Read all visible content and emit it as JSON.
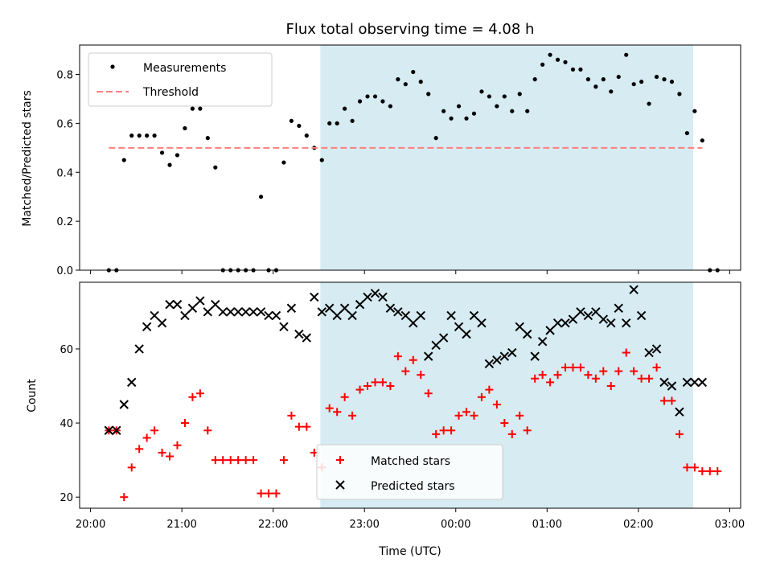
{
  "chart_data": {
    "title": "Flux total observing time = 4.08 h",
    "xlabel": "Time (UTC)",
    "x_ticks": [
      "20:00",
      "21:00",
      "22:00",
      "23:00",
      "00:00",
      "01:00",
      "02:00",
      "03:00"
    ],
    "x_range_hours": [
      -0.12,
      7.12
    ],
    "shaded_region": {
      "start": "22:31",
      "end": "02:36",
      "color": "#add8e6"
    },
    "panels": [
      {
        "type": "scatter",
        "ylabel": "Matched/Predicted stars",
        "ylim": [
          0,
          0.92
        ],
        "y_ticks": [
          "0.0",
          "0.2",
          "0.4",
          "0.6",
          "0.8"
        ],
        "y_tick_values": [
          0,
          0.2,
          0.4,
          0.6,
          0.8
        ],
        "legend_placement": "upper-left",
        "series": [
          {
            "name": "Measurements",
            "marker": "dot",
            "color": "#000000",
            "x": [
              "20:12",
              "20:17",
              "20:22",
              "20:27",
              "20:32",
              "20:37",
              "20:42",
              "20:47",
              "20:52",
              "20:57",
              "21:02",
              "21:07",
              "21:12",
              "21:17",
              "21:22",
              "21:27",
              "21:32",
              "21:37",
              "21:42",
              "21:47",
              "21:52",
              "21:57",
              "22:02",
              "22:07",
              "22:12",
              "22:17",
              "22:22",
              "22:27",
              "22:32",
              "22:37",
              "22:42",
              "22:47",
              "22:52",
              "22:57",
              "23:02",
              "23:07",
              "23:12",
              "23:17",
              "23:22",
              "23:27",
              "23:32",
              "23:37",
              "23:42",
              "23:47",
              "23:52",
              "23:57",
              "00:02",
              "00:07",
              "00:12",
              "00:17",
              "00:22",
              "00:27",
              "00:32",
              "00:37",
              "00:42",
              "00:47",
              "00:52",
              "00:57",
              "01:02",
              "01:07",
              "01:12",
              "01:17",
              "01:22",
              "01:27",
              "01:32",
              "01:37",
              "01:42",
              "01:47",
              "01:52",
              "01:57",
              "02:02",
              "02:07",
              "02:12",
              "02:17",
              "02:22",
              "02:27",
              "02:32",
              "02:37",
              "02:42"
            ],
            "y": [
              0,
              0,
              0.45,
              0.55,
              0.55,
              0.55,
              0.55,
              0.48,
              0.43,
              0.47,
              0.58,
              0.66,
              0.66,
              0.54,
              0.42,
              0,
              0,
              0,
              0,
              0,
              0.3,
              0,
              0,
              0.44,
              0.61,
              0.59,
              0.55,
              0.5,
              0.45,
              0.6,
              0.6,
              0.66,
              0.61,
              0.69,
              0.71,
              0.71,
              0.69,
              0.67,
              0.78,
              0.76,
              0.81,
              0.77,
              0.72,
              0.54,
              0.65,
              0.62,
              0.67,
              0.62,
              0.64,
              0.73,
              0.71,
              0.67,
              0.71,
              0.65,
              0.72,
              0.65,
              0.78,
              0.84,
              0.88,
              0.86,
              0.85,
              0.82,
              0.82,
              0.78,
              0.75,
              0.78,
              0.73,
              0.79,
              0.88,
              0.76,
              0.77,
              0.68,
              0.79,
              0.78,
              0.77,
              0.72,
              0.56,
              0.65,
              0.53
            ]
          },
          {
            "name": "Threshold",
            "type": "line",
            "style": "dashed",
            "color": "#ff7f7f",
            "x": [
              "20:12",
              "02:42"
            ],
            "y": [
              0.5,
              0.5
            ]
          }
        ],
        "zero_points_after_shading": [
          "02:47",
          "02:52"
        ]
      },
      {
        "type": "scatter",
        "ylabel": "Count",
        "ylim": [
          17,
          78
        ],
        "y_ticks": [
          "20",
          "40",
          "60"
        ],
        "y_tick_values": [
          20,
          40,
          60
        ],
        "legend_placement": "lower-center",
        "series": [
          {
            "name": "Matched stars",
            "marker": "plus",
            "color": "#ff0000",
            "x": [
              "20:12",
              "20:17",
              "20:22",
              "20:27",
              "20:32",
              "20:37",
              "20:42",
              "20:47",
              "20:52",
              "20:57",
              "21:02",
              "21:07",
              "21:12",
              "21:17",
              "21:22",
              "21:27",
              "21:32",
              "21:37",
              "21:42",
              "21:47",
              "21:52",
              "21:57",
              "22:02",
              "22:07",
              "22:12",
              "22:17",
              "22:22",
              "22:27",
              "22:32",
              "22:37",
              "22:42",
              "22:47",
              "22:52",
              "22:57",
              "23:02",
              "23:07",
              "23:12",
              "23:17",
              "23:22",
              "23:27",
              "23:32",
              "23:37",
              "23:42",
              "23:47",
              "23:52",
              "23:57",
              "00:02",
              "00:07",
              "00:12",
              "00:17",
              "00:22",
              "00:27",
              "00:32",
              "00:37",
              "00:42",
              "00:47",
              "00:52",
              "00:57",
              "01:02",
              "01:07",
              "01:12",
              "01:17",
              "01:22",
              "01:27",
              "01:32",
              "01:37",
              "01:42",
              "01:47",
              "01:52",
              "01:57",
              "02:02",
              "02:07",
              "02:12",
              "02:17",
              "02:22",
              "02:27",
              "02:32",
              "02:37",
              "02:42",
              "02:47",
              "02:52"
            ],
            "y": [
              38,
              38,
              20,
              28,
              33,
              36,
              38,
              32,
              31,
              34,
              40,
              47,
              48,
              38,
              30,
              30,
              30,
              30,
              30,
              30,
              21,
              21,
              21,
              30,
              42,
              39,
              39,
              32,
              28,
              44,
              43,
              47,
              42,
              49,
              50,
              51,
              51,
              50,
              58,
              54,
              57,
              53,
              48,
              37,
              38,
              38,
              42,
              43,
              42,
              47,
              49,
              45,
              40,
              37,
              42,
              38,
              52,
              53,
              51,
              53,
              55,
              55,
              55,
              53,
              52,
              54,
              50,
              54,
              59,
              54,
              52,
              52,
              55,
              46,
              46,
              37,
              28,
              28,
              27,
              27,
              27
            ]
          },
          {
            "name": "Predicted stars",
            "marker": "x",
            "color": "#000000",
            "x": [
              "20:12",
              "20:17",
              "20:22",
              "20:27",
              "20:32",
              "20:37",
              "20:42",
              "20:47",
              "20:52",
              "20:57",
              "21:02",
              "21:07",
              "21:12",
              "21:17",
              "21:22",
              "21:27",
              "21:32",
              "21:37",
              "21:42",
              "21:47",
              "21:52",
              "21:57",
              "22:02",
              "22:07",
              "22:12",
              "22:17",
              "22:22",
              "22:27",
              "22:32",
              "22:37",
              "22:42",
              "22:47",
              "22:52",
              "22:57",
              "23:02",
              "23:07",
              "23:12",
              "23:17",
              "23:22",
              "23:27",
              "23:32",
              "23:37",
              "23:42",
              "23:47",
              "23:52",
              "23:57",
              "00:02",
              "00:07",
              "00:12",
              "00:17",
              "00:22",
              "00:27",
              "00:32",
              "00:37",
              "00:42",
              "00:47",
              "00:52",
              "00:57",
              "01:02",
              "01:07",
              "01:12",
              "01:17",
              "01:22",
              "01:27",
              "01:32",
              "01:37",
              "01:42",
              "01:47",
              "01:52",
              "01:57",
              "02:02",
              "02:07",
              "02:12",
              "02:17",
              "02:22",
              "02:27",
              "02:32",
              "02:37",
              "02:42"
            ],
            "y": [
              38,
              38,
              45,
              51,
              60,
              66,
              69,
              67,
              72,
              72,
              69,
              71,
              73,
              70,
              72,
              70,
              70,
              70,
              70,
              70,
              70,
              69,
              69,
              66,
              71,
              64,
              63,
              74,
              70,
              71,
              69,
              71,
              69,
              72,
              74,
              75,
              74,
              71,
              70,
              69,
              67,
              69,
              58,
              61,
              63,
              69,
              66,
              64,
              69,
              67,
              56,
              57,
              58,
              59,
              66,
              64,
              58,
              62,
              65,
              67,
              67,
              68,
              70,
              69,
              70,
              68,
              67,
              71,
              67,
              76,
              69,
              59,
              60,
              51,
              50,
              43,
              51,
              51,
              51
            ]
          }
        ]
      }
    ]
  }
}
